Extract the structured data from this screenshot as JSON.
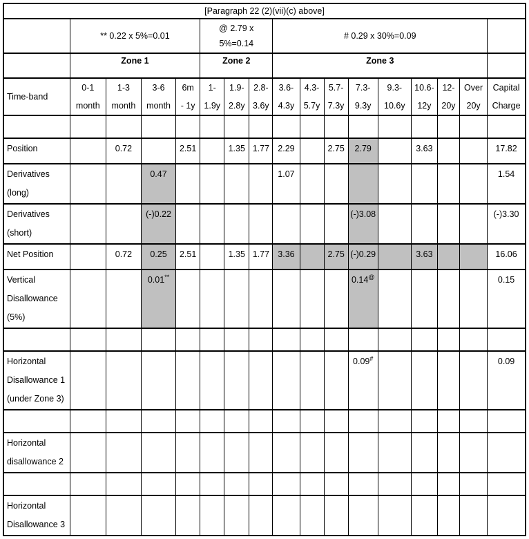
{
  "title": "[Paragraph 22 (2)(vii)(c) above]",
  "formula_row": {
    "zone1": "** 0.22 x 5%=0.01",
    "zone2_line1": "@ 2.79 x",
    "zone2_line2": "5%=0.14",
    "zone3": "# 0.29 x 30%=0.09"
  },
  "zones": {
    "zone1": "Zone 1",
    "zone2": "Zone 2",
    "zone3": "Zone 3"
  },
  "columns": {
    "label_header": "Time-band",
    "time_bands": [
      [
        "0-1",
        "month"
      ],
      [
        "1-3",
        "month"
      ],
      [
        "3-6",
        "month"
      ],
      [
        "6m",
        "- 1y"
      ],
      [
        "1-",
        "1.9y"
      ],
      [
        "1.9-",
        "2.8y"
      ],
      [
        "2.8-",
        "3.6y"
      ],
      [
        "3.6-",
        "4.3y"
      ],
      [
        "4.3-",
        "5.7y"
      ],
      [
        "5.7-",
        "7.3y"
      ],
      [
        "7.3-",
        "9.3y"
      ],
      [
        "9.3-",
        "10.6y"
      ],
      [
        "10.6-",
        "12y"
      ],
      [
        "12-",
        "20y"
      ],
      [
        "Over",
        "20y"
      ]
    ],
    "capital_header": [
      "Capital",
      "Charge"
    ],
    "keys": [
      "0-1-month",
      "1-3-month",
      "3-6-month",
      "6m-1y",
      "1-1.9y",
      "1.9-2.8y",
      "2.8-3.6y",
      "3.6-4.3y",
      "4.3-5.7y",
      "5.7-7.3y",
      "7.3-9.3y",
      "9.3-10.6y",
      "10.6-12y",
      "12-20y",
      "over-20y",
      "capital-charge"
    ]
  },
  "rows": [
    {
      "name": "blank-row-1",
      "label_lines": [],
      "cells": [
        "",
        "",
        "",
        "",
        "",
        "",
        "",
        "",
        "",
        "",
        "",
        "",
        "",
        "",
        "",
        ""
      ]
    },
    {
      "name": "position",
      "label_lines": [
        "Position"
      ],
      "cells": [
        "",
        {
          "v": "0.72"
        },
        "",
        {
          "v": "2.51"
        },
        "",
        {
          "v": "1.35"
        },
        {
          "v": "1.77"
        },
        {
          "v": "2.29"
        },
        "",
        {
          "v": "2.75"
        },
        {
          "v": "2.79",
          "sh": true
        },
        "",
        {
          "v": "3.63"
        },
        "",
        "",
        {
          "v": "17.82"
        }
      ]
    },
    {
      "name": "derivatives-long",
      "label_lines": [
        "Derivatives",
        "(long)"
      ],
      "cells": [
        "",
        "",
        {
          "v": "0.47",
          "sh": true
        },
        "",
        "",
        "",
        "",
        {
          "v": "1.07"
        },
        "",
        "",
        {
          "v": "",
          "sh": true
        },
        "",
        "",
        "",
        "",
        {
          "v": "1.54"
        }
      ]
    },
    {
      "name": "derivatives-short",
      "label_lines": [
        "Derivatives",
        "(short)"
      ],
      "cells": [
        "",
        "",
        {
          "v": "(-)0.22",
          "sh": true
        },
        "",
        "",
        "",
        "",
        "",
        "",
        "",
        {
          "v": "(-)3.08",
          "sh": true
        },
        "",
        "",
        "",
        "",
        {
          "v": "(-)3.30"
        }
      ]
    },
    {
      "name": "net-position",
      "label_lines": [
        "Net Position"
      ],
      "cells": [
        "",
        {
          "v": "0.72"
        },
        {
          "v": "0.25",
          "sh": true
        },
        {
          "v": "2.51"
        },
        "",
        {
          "v": "1.35"
        },
        {
          "v": "1.77"
        },
        {
          "v": "3.36",
          "sh": true
        },
        {
          "v": "",
          "sh": true
        },
        {
          "v": "2.75",
          "sh": true
        },
        {
          "v": "(-)0.29",
          "sh": true
        },
        {
          "v": "",
          "sh": true
        },
        {
          "v": "3.63",
          "sh": true
        },
        {
          "v": "",
          "sh": true
        },
        {
          "v": "",
          "sh": true
        },
        {
          "v": "16.06"
        }
      ]
    },
    {
      "name": "vertical-disallowance",
      "label_lines": [
        "Vertical",
        "Disallowance",
        "(5%)"
      ],
      "cells": [
        "",
        "",
        {
          "v": "0.01",
          "sup": "**",
          "sh": true
        },
        "",
        "",
        "",
        "",
        "",
        "",
        "",
        {
          "v": "0.14",
          "sup": "@",
          "sh": true
        },
        "",
        "",
        "",
        "",
        {
          "v": "0.15"
        }
      ]
    },
    {
      "name": "blank-row-2",
      "label_lines": [],
      "cells": [
        "",
        "",
        "",
        "",
        "",
        "",
        "",
        "",
        "",
        "",
        "",
        "",
        "",
        "",
        "",
        ""
      ]
    },
    {
      "name": "horizontal-disallowance-1",
      "label_lines": [
        "Horizontal",
        "Disallowance 1",
        "(under Zone 3)"
      ],
      "cells": [
        "",
        "",
        "",
        "",
        "",
        "",
        "",
        "",
        "",
        "",
        {
          "v": "0.09",
          "sup": "#"
        },
        "",
        "",
        "",
        "",
        {
          "v": "0.09"
        }
      ]
    },
    {
      "name": "blank-row-3",
      "label_lines": [],
      "cells": [
        "",
        "",
        "",
        "",
        "",
        "",
        "",
        "",
        "",
        "",
        "",
        "",
        "",
        "",
        "",
        ""
      ]
    },
    {
      "name": "horizontal-disallowance-2",
      "label_lines": [
        "Horizontal",
        "disallowance 2"
      ],
      "cells": [
        "",
        "",
        "",
        "",
        "",
        "",
        "",
        "",
        "",
        "",
        "",
        "",
        "",
        "",
        "",
        ""
      ]
    },
    {
      "name": "blank-row-4",
      "label_lines": [],
      "cells": [
        "",
        "",
        "",
        "",
        "",
        "",
        "",
        "",
        "",
        "",
        "",
        "",
        "",
        "",
        "",
        ""
      ]
    },
    {
      "name": "horizontal-disallowance-3",
      "label_lines": [
        "Horizontal",
        "Disallowance 3"
      ],
      "cells": [
        "",
        "",
        "",
        "",
        "",
        "",
        "",
        "",
        "",
        "",
        "",
        "",
        "",
        "",
        "",
        ""
      ]
    }
  ],
  "colors": {
    "shaded_cell": "#c0c0c0",
    "border": "#000000",
    "background": "#ffffff"
  }
}
